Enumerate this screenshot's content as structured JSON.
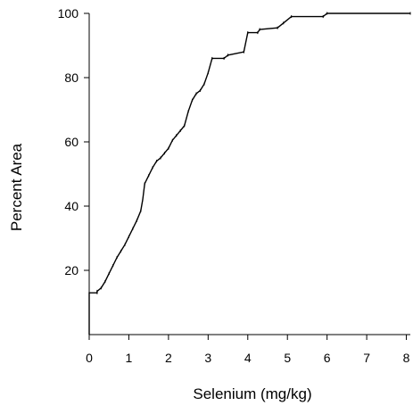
{
  "chart_data": {
    "type": "line",
    "title": "",
    "xlabel": "Selenium (mg/kg)",
    "ylabel": "Percent Area",
    "xlim": [
      0,
      8.1
    ],
    "ylim": [
      0,
      100
    ],
    "x_ticks": [
      0,
      1,
      2,
      3,
      4,
      5,
      6,
      7,
      8
    ],
    "y_ticks": [
      20,
      40,
      60,
      80,
      100
    ],
    "grid": false,
    "legend": "none",
    "line_color": "#000000",
    "series": [
      {
        "points": [
          [
            0,
            0
          ],
          [
            0,
            13
          ],
          [
            0.2,
            13
          ],
          [
            0.2,
            13.5
          ],
          [
            0.3,
            14.5
          ],
          [
            0.4,
            16.5
          ],
          [
            0.5,
            19
          ],
          [
            0.6,
            21.5
          ],
          [
            0.7,
            24
          ],
          [
            0.8,
            26
          ],
          [
            0.9,
            28
          ],
          [
            1.0,
            30.5
          ],
          [
            1.1,
            33
          ],
          [
            1.2,
            35.5
          ],
          [
            1.3,
            38.5
          ],
          [
            1.35,
            42
          ],
          [
            1.4,
            47
          ],
          [
            1.5,
            49.5
          ],
          [
            1.6,
            52
          ],
          [
            1.7,
            54
          ],
          [
            1.8,
            55
          ],
          [
            1.9,
            56.5
          ],
          [
            2.0,
            58
          ],
          [
            2.1,
            60.5
          ],
          [
            2.2,
            62
          ],
          [
            2.3,
            63.5
          ],
          [
            2.4,
            65
          ],
          [
            2.5,
            69.5
          ],
          [
            2.6,
            73
          ],
          [
            2.7,
            75
          ],
          [
            2.8,
            76
          ],
          [
            2.9,
            78
          ],
          [
            3.0,
            81.5
          ],
          [
            3.1,
            86
          ],
          [
            3.4,
            86
          ],
          [
            3.5,
            87
          ],
          [
            3.9,
            88
          ],
          [
            4.0,
            94
          ],
          [
            4.25,
            94
          ],
          [
            4.3,
            95
          ],
          [
            4.75,
            95.5
          ],
          [
            4.9,
            97
          ],
          [
            5.1,
            99
          ],
          [
            5.9,
            99
          ],
          [
            6.0,
            100
          ],
          [
            8.1,
            100
          ]
        ]
      }
    ]
  }
}
